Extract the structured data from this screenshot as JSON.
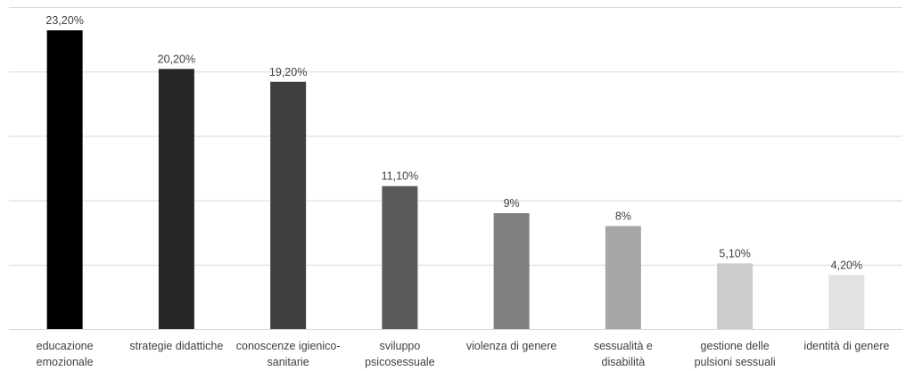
{
  "chart_data": {
    "type": "bar",
    "categories": [
      [
        "educazione",
        "emozionale"
      ],
      [
        "strategie didattiche"
      ],
      [
        "conoscenze igienico-",
        "sanitarie"
      ],
      [
        "sviluppo",
        "psicosessuale"
      ],
      [
        "violenza di genere"
      ],
      [
        "sessualità e",
        "disabilità"
      ],
      [
        "gestione delle",
        "pulsioni sessuali"
      ],
      [
        "identità di genere"
      ]
    ],
    "values": [
      23.2,
      20.2,
      19.2,
      11.1,
      9,
      8,
      5.1,
      4.2
    ],
    "data_labels": [
      "23,20%",
      "20,20%",
      "19,20%",
      "11,10%",
      "9%",
      "8%",
      "5,10%",
      "4,20%"
    ],
    "bar_colors": [
      "#000000",
      "#262626",
      "#3f3f3f",
      "#595959",
      "#7f7f7f",
      "#a6a6a6",
      "#cccccc",
      "#e2e2e2"
    ],
    "ylim": [
      0,
      25
    ],
    "gridlines_at": [
      5,
      10,
      15,
      20,
      25
    ],
    "grid": true,
    "legend": "none",
    "title": "",
    "xlabel": "",
    "ylabel": ""
  }
}
